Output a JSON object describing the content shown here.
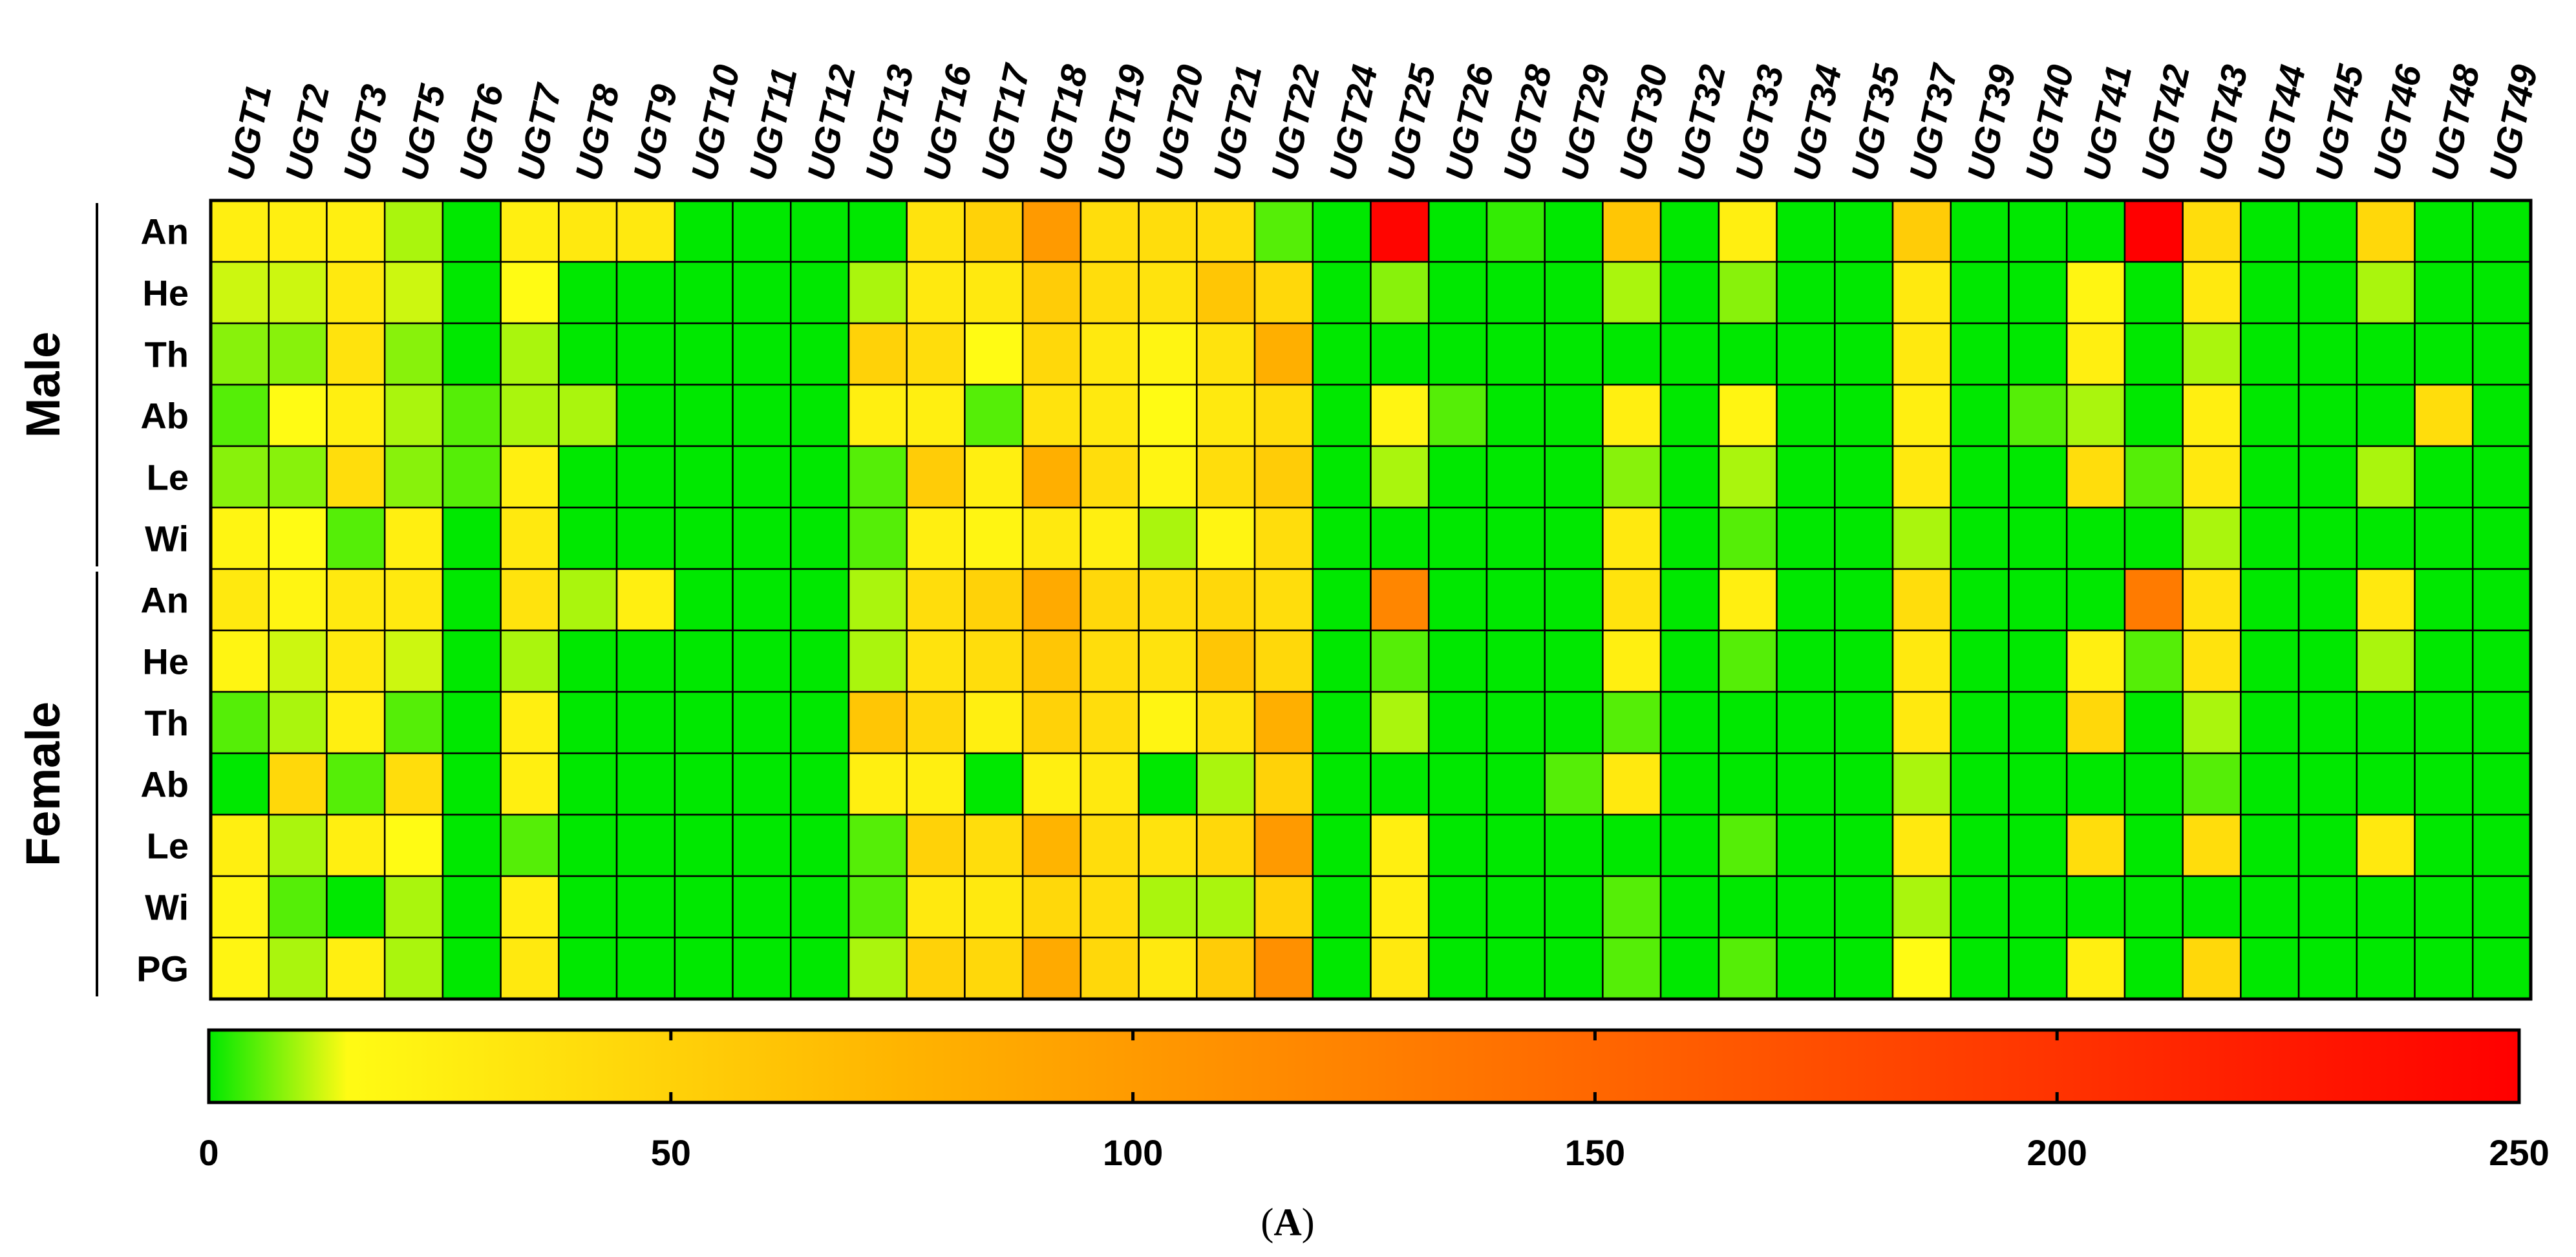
{
  "chart_data": {
    "type": "heatmap",
    "caption": "A",
    "columns": [
      "UGT1",
      "UGT2",
      "UGT3",
      "UGT5",
      "UGT6",
      "UGT7",
      "UGT8",
      "UGT9",
      "UGT10",
      "UGT11",
      "UGT12",
      "UGT13",
      "UGT16",
      "UGT17",
      "UGT18",
      "UGT19",
      "UGT20",
      "UGT21",
      "UGT22",
      "UGT24",
      "UGT25",
      "UGT26",
      "UGT28",
      "UGT29",
      "UGT30",
      "UGT32",
      "UGT33",
      "UGT34",
      "UGT35",
      "UGT37",
      "UGT39",
      "UGT40",
      "UGT41",
      "UGT42",
      "UGT43",
      "UGT44",
      "UGT45",
      "UGT46",
      "UGT48",
      "UGT49"
    ],
    "groups": [
      {
        "name": "Male",
        "rows": [
          "An",
          "He",
          "Th",
          "Ab",
          "Le",
          "Wi"
        ]
      },
      {
        "name": "Female",
        "rows": [
          "An",
          "He",
          "Th",
          "Ab",
          "Le",
          "Wi",
          "PG"
        ]
      }
    ],
    "values": [
      [
        25,
        25,
        25,
        10,
        0,
        25,
        30,
        30,
        0,
        0,
        0,
        0,
        35,
        50,
        100,
        40,
        40,
        40,
        5,
        0,
        245,
        0,
        3,
        0,
        60,
        0,
        25,
        0,
        0,
        55,
        0,
        0,
        0,
        250,
        40,
        0,
        0,
        45,
        0,
        0
      ],
      [
        12,
        12,
        30,
        12,
        0,
        15,
        0,
        0,
        0,
        0,
        0,
        10,
        30,
        30,
        55,
        40,
        35,
        60,
        45,
        0,
        8,
        0,
        0,
        0,
        10,
        0,
        8,
        0,
        0,
        30,
        0,
        0,
        20,
        0,
        30,
        0,
        0,
        10,
        0,
        0
      ],
      [
        8,
        8,
        35,
        8,
        0,
        10,
        0,
        0,
        0,
        0,
        0,
        50,
        40,
        15,
        45,
        30,
        20,
        35,
        80,
        0,
        0,
        0,
        0,
        0,
        0,
        0,
        0,
        0,
        0,
        30,
        0,
        0,
        25,
        0,
        10,
        0,
        0,
        0,
        0,
        0
      ],
      [
        5,
        15,
        25,
        10,
        5,
        10,
        10,
        0,
        0,
        0,
        0,
        25,
        25,
        5,
        35,
        30,
        15,
        30,
        40,
        0,
        20,
        5,
        0,
        0,
        25,
        0,
        20,
        0,
        0,
        25,
        0,
        5,
        10,
        0,
        25,
        0,
        0,
        0,
        40,
        0
      ],
      [
        8,
        8,
        40,
        8,
        5,
        25,
        0,
        0,
        0,
        0,
        0,
        5,
        55,
        25,
        80,
        40,
        20,
        40,
        55,
        0,
        10,
        0,
        0,
        0,
        8,
        0,
        10,
        0,
        0,
        30,
        0,
        0,
        40,
        5,
        30,
        0,
        0,
        10,
        0,
        0
      ],
      [
        20,
        15,
        5,
        25,
        0,
        30,
        0,
        0,
        0,
        0,
        0,
        5,
        25,
        20,
        30,
        25,
        10,
        20,
        40,
        0,
        0,
        0,
        0,
        0,
        30,
        0,
        5,
        0,
        0,
        10,
        0,
        0,
        0,
        0,
        10,
        0,
        0,
        0,
        0,
        0
      ],
      [
        30,
        20,
        30,
        30,
        0,
        35,
        10,
        25,
        0,
        0,
        0,
        10,
        40,
        50,
        85,
        45,
        40,
        45,
        40,
        0,
        120,
        0,
        0,
        0,
        35,
        0,
        25,
        0,
        0,
        40,
        0,
        0,
        0,
        130,
        35,
        0,
        0,
        30,
        0,
        0
      ],
      [
        20,
        12,
        30,
        12,
        0,
        10,
        0,
        0,
        0,
        0,
        0,
        10,
        35,
        40,
        60,
        40,
        35,
        60,
        45,
        0,
        5,
        0,
        0,
        0,
        25,
        0,
        5,
        0,
        0,
        30,
        0,
        0,
        25,
        5,
        35,
        0,
        0,
        10,
        0,
        0
      ],
      [
        5,
        10,
        25,
        5,
        0,
        25,
        0,
        0,
        0,
        0,
        0,
        60,
        45,
        25,
        50,
        40,
        20,
        35,
        80,
        0,
        10,
        0,
        0,
        0,
        5,
        0,
        0,
        0,
        0,
        30,
        0,
        0,
        45,
        0,
        10,
        0,
        0,
        0,
        0,
        0
      ],
      [
        0,
        45,
        5,
        40,
        0,
        25,
        0,
        0,
        0,
        0,
        0,
        25,
        25,
        0,
        25,
        30,
        0,
        10,
        50,
        0,
        0,
        0,
        0,
        5,
        30,
        0,
        0,
        0,
        0,
        10,
        0,
        0,
        0,
        0,
        5,
        0,
        0,
        0,
        0,
        0
      ],
      [
        25,
        10,
        25,
        15,
        0,
        5,
        0,
        0,
        0,
        0,
        0,
        5,
        50,
        40,
        75,
        40,
        35,
        45,
        100,
        0,
        25,
        0,
        0,
        0,
        0,
        0,
        5,
        0,
        0,
        30,
        0,
        0,
        40,
        0,
        40,
        0,
        0,
        30,
        0,
        0
      ],
      [
        20,
        5,
        0,
        10,
        0,
        25,
        0,
        0,
        0,
        0,
        0,
        5,
        30,
        30,
        45,
        40,
        10,
        10,
        50,
        0,
        25,
        0,
        0,
        0,
        5,
        0,
        0,
        0,
        0,
        10,
        0,
        0,
        0,
        0,
        0,
        0,
        0,
        0,
        0,
        0
      ],
      [
        20,
        10,
        25,
        10,
        0,
        30,
        0,
        0,
        0,
        0,
        0,
        10,
        50,
        45,
        85,
        45,
        30,
        55,
        110,
        0,
        30,
        0,
        0,
        0,
        5,
        0,
        5,
        0,
        0,
        15,
        0,
        0,
        25,
        0,
        45,
        0,
        0,
        0,
        0,
        0
      ]
    ],
    "colorbar": {
      "min": 0,
      "max": 250,
      "ticks": [
        0,
        50,
        100,
        150,
        200,
        250
      ],
      "tick_labels": [
        "0",
        "50",
        "100",
        "150",
        "200",
        "250"
      ],
      "colors": [
        "#00e800",
        "#fffb14",
        "#ffb400",
        "#ff0000"
      ]
    },
    "cell_border_color": "#000000"
  }
}
